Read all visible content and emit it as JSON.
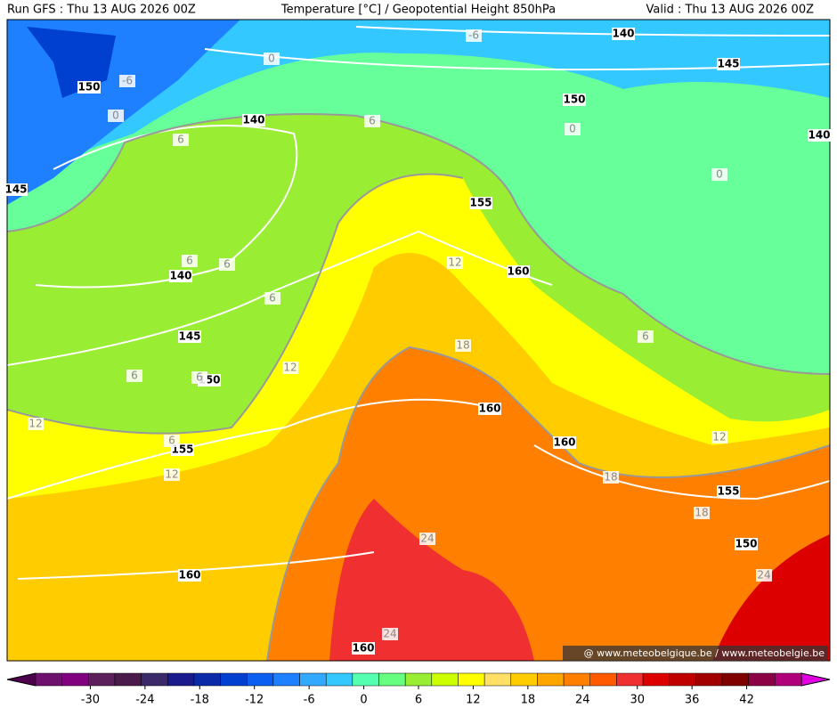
{
  "header": {
    "left": "Run GFS : Thu 13 AUG 2026 00Z",
    "center": "Temperature [°C] / Geopotential Height 850hPa",
    "right": "Valid : Thu 13 AUG 2026 00Z"
  },
  "map": {
    "height_labels": [
      140,
      145,
      150,
      150,
      140,
      140,
      145,
      155,
      160,
      140,
      145,
      150,
      155,
      160,
      160,
      155,
      150,
      160,
      160
    ],
    "temperature_labels": [
      -6,
      -6,
      0,
      0,
      0,
      0,
      6,
      6,
      6,
      6,
      6,
      6,
      6,
      6,
      6,
      12,
      12,
      12,
      12,
      12,
      18,
      18,
      18,
      24,
      24,
      24
    ],
    "watermark": "@ www.meteobelgique.be / www.meteobelgie.be"
  },
  "colorbar": {
    "range": [
      -36,
      48
    ],
    "ticks": [
      -30,
      -24,
      -18,
      -12,
      -6,
      0,
      6,
      12,
      18,
      24,
      30,
      36,
      42
    ],
    "colors": [
      "#4d004d",
      "#6e106e",
      "#800080",
      "#5c1f5c",
      "#4a1a4a",
      "#3a2a6a",
      "#1a1a8c",
      "#0a2aa8",
      "#0040d0",
      "#0a5ef0",
      "#1e7fff",
      "#33a8ff",
      "#33c8ff",
      "#55ffb0",
      "#66ff80",
      "#99ee33",
      "#ccff00",
      "#ffff00",
      "#ffe066",
      "#ffcc00",
      "#ffa500",
      "#ff8000",
      "#ff5a00",
      "#f03030",
      "#dd0000",
      "#c00000",
      "#a00000",
      "#800000",
      "#8c0046",
      "#b0007a",
      "#e000e0"
    ]
  }
}
